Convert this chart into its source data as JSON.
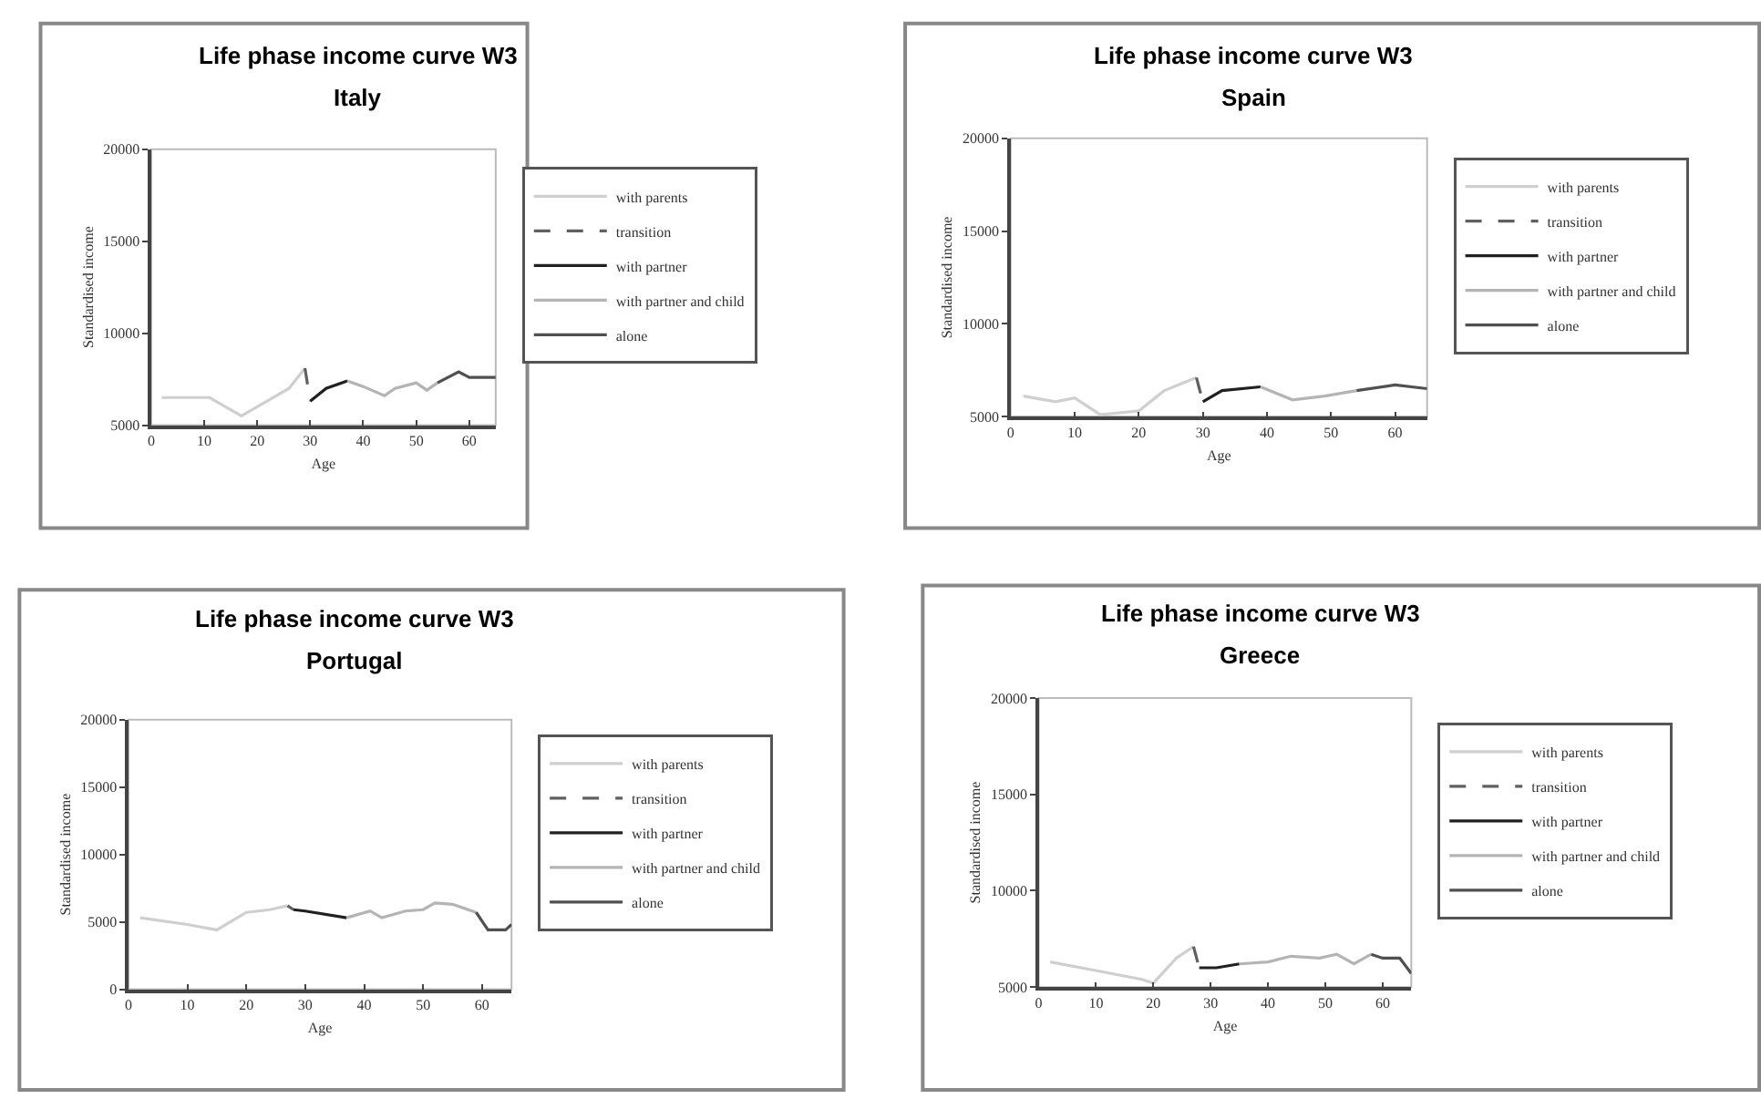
{
  "chart_data": [
    {
      "type": "line",
      "title": "Life phase income curve W3",
      "subtitle": "Italy",
      "xlabel": "Age",
      "ylabel": "Standardised income",
      "xlim": [
        0,
        65
      ],
      "xticks": [
        0,
        10,
        20,
        30,
        40,
        50,
        60
      ],
      "ylim": [
        5000,
        20000
      ],
      "yticks": [
        5000,
        10000,
        15000,
        20000
      ],
      "grid": false,
      "legend": "right",
      "series": [
        {
          "name": "with parents",
          "color": "#cfcfcf",
          "line_style": "solid",
          "x": [
            2,
            11,
            17,
            20,
            26,
            29
          ],
          "values": [
            6500,
            6500,
            5500,
            6000,
            7000,
            8100
          ]
        },
        {
          "name": "transition",
          "color": "#606060",
          "line_style": "dashed",
          "x": [
            29,
            30
          ],
          "values": [
            8100,
            6300
          ]
        },
        {
          "name": "with partner",
          "color": "#202020",
          "line_style": "solid",
          "x": [
            30,
            33,
            37
          ],
          "values": [
            6300,
            7000,
            7400
          ]
        },
        {
          "name": "with partner and child",
          "color": "#b4b4b4",
          "line_style": "solid",
          "x": [
            37,
            40,
            44,
            46,
            50,
            52,
            54
          ],
          "values": [
            7400,
            7100,
            6600,
            7000,
            7300,
            6900,
            7300
          ]
        },
        {
          "name": "alone",
          "color": "#505050",
          "line_style": "solid",
          "x": [
            54,
            58,
            60,
            65
          ],
          "values": [
            7300,
            7900,
            7600,
            7600
          ]
        }
      ]
    },
    {
      "type": "line",
      "title": "Life phase income curve W3",
      "subtitle": "Spain",
      "xlabel": "Age",
      "ylabel": "Standardised income",
      "xlim": [
        0,
        65
      ],
      "xticks": [
        0,
        10,
        20,
        30,
        40,
        50,
        60
      ],
      "ylim": [
        5000,
        20000
      ],
      "yticks": [
        5000,
        10000,
        15000,
        20000
      ],
      "grid": false,
      "legend": "right",
      "series": [
        {
          "name": "with parents",
          "color": "#cfcfcf",
          "line_style": "solid",
          "x": [
            2,
            7,
            10,
            14,
            20,
            24,
            29
          ],
          "values": [
            6100,
            5800,
            6000,
            5100,
            5300,
            6400,
            7100
          ]
        },
        {
          "name": "transition",
          "color": "#606060",
          "line_style": "dashed",
          "x": [
            29,
            30
          ],
          "values": [
            7100,
            5800
          ]
        },
        {
          "name": "with partner",
          "color": "#202020",
          "line_style": "solid",
          "x": [
            30,
            33,
            39
          ],
          "values": [
            5800,
            6400,
            6600
          ]
        },
        {
          "name": "with partner and child",
          "color": "#b4b4b4",
          "line_style": "solid",
          "x": [
            39,
            44,
            49,
            54
          ],
          "values": [
            6600,
            5900,
            6100,
            6400
          ]
        },
        {
          "name": "alone",
          "color": "#505050",
          "line_style": "solid",
          "x": [
            54,
            60,
            65
          ],
          "values": [
            6400,
            6700,
            6500
          ]
        }
      ]
    },
    {
      "type": "line",
      "title": "Life phase income curve W3",
      "subtitle": "Portugal",
      "xlabel": "Age",
      "ylabel": "Standardised income",
      "xlim": [
        0,
        65
      ],
      "xticks": [
        0,
        10,
        20,
        30,
        40,
        50,
        60
      ],
      "ylim": [
        0,
        20000
      ],
      "yticks": [
        0,
        5000,
        10000,
        15000,
        20000
      ],
      "grid": false,
      "legend": "right",
      "series": [
        {
          "name": "with parents",
          "color": "#cfcfcf",
          "line_style": "solid",
          "x": [
            2,
            10,
            15,
            20,
            24,
            27
          ],
          "values": [
            5300,
            4800,
            4400,
            5700,
            5900,
            6200
          ]
        },
        {
          "name": "transition",
          "color": "#606060",
          "line_style": "dashed",
          "x": [
            27,
            28
          ],
          "values": [
            6200,
            5900
          ]
        },
        {
          "name": "with partner",
          "color": "#202020",
          "line_style": "solid",
          "x": [
            28,
            30,
            37
          ],
          "values": [
            5900,
            5800,
            5300
          ]
        },
        {
          "name": "with partner and child",
          "color": "#b4b4b4",
          "line_style": "solid",
          "x": [
            37,
            41,
            43,
            47,
            50,
            52,
            55,
            59
          ],
          "values": [
            5300,
            5800,
            5300,
            5800,
            5900,
            6400,
            6300,
            5700
          ]
        },
        {
          "name": "alone",
          "color": "#505050",
          "line_style": "solid",
          "x": [
            59,
            61,
            64,
            65
          ],
          "values": [
            5700,
            4400,
            4400,
            4800
          ]
        }
      ]
    },
    {
      "type": "line",
      "title": "Life phase income curve W3",
      "subtitle": "Greece",
      "xlabel": "Age",
      "ylabel": "Standardised income",
      "xlim": [
        0,
        65
      ],
      "xticks": [
        0,
        10,
        20,
        30,
        40,
        50,
        60
      ],
      "ylim": [
        5000,
        20000
      ],
      "yticks": [
        5000,
        10000,
        15000,
        20000
      ],
      "grid": false,
      "legend": "right",
      "series": [
        {
          "name": "with parents",
          "color": "#cfcfcf",
          "line_style": "solid",
          "x": [
            2,
            11,
            18,
            20,
            24,
            27
          ],
          "values": [
            6300,
            5800,
            5400,
            5200,
            6500,
            7100
          ]
        },
        {
          "name": "transition",
          "color": "#606060",
          "line_style": "dashed",
          "x": [
            27,
            28
          ],
          "values": [
            7100,
            6000
          ]
        },
        {
          "name": "with partner",
          "color": "#202020",
          "line_style": "solid",
          "x": [
            28,
            31,
            35
          ],
          "values": [
            6000,
            6000,
            6200
          ]
        },
        {
          "name": "with partner and child",
          "color": "#b4b4b4",
          "line_style": "solid",
          "x": [
            35,
            40,
            44,
            49,
            52,
            55,
            58
          ],
          "values": [
            6200,
            6300,
            6600,
            6500,
            6700,
            6200,
            6700
          ]
        },
        {
          "name": "alone",
          "color": "#505050",
          "line_style": "solid",
          "x": [
            58,
            60,
            63,
            65
          ],
          "values": [
            6700,
            6500,
            6500,
            5700
          ]
        }
      ]
    }
  ]
}
